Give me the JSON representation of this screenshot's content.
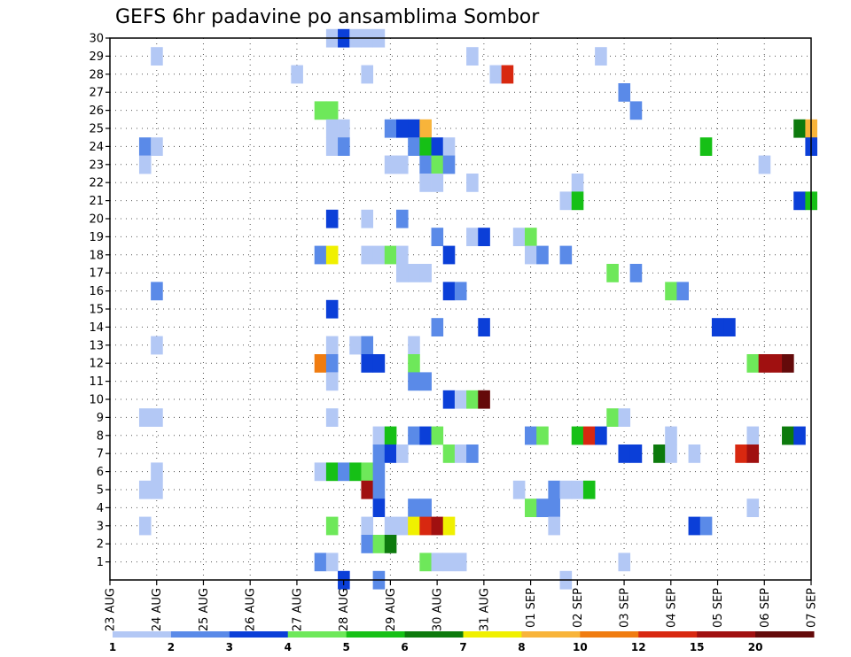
{
  "chart_data": {
    "type": "heatmap",
    "title": "GEFS 6hr padavine po ansamblima Sombor",
    "x_tick_labels": [
      "23 AUG",
      "24 AUG",
      "25 AUG",
      "26 AUG",
      "27 AUG",
      "28 AUG",
      "29 AUG",
      "30 AUG",
      "31 AUG",
      "01 SEP",
      "02 SEP",
      "03 SEP",
      "04 SEP",
      "05 SEP",
      "06 SEP",
      "07 SEP"
    ],
    "y_tick_labels": [
      "1",
      "2",
      "3",
      "4",
      "5",
      "6",
      "7",
      "8",
      "9",
      "10",
      "11",
      "12",
      "13",
      "14",
      "15",
      "16",
      "17",
      "18",
      "19",
      "20",
      "21",
      "22",
      "23",
      "24",
      "25",
      "26",
      "27",
      "28",
      "29",
      "30"
    ],
    "x_range_steps": [
      0,
      60
    ],
    "steps_per_day": 4,
    "ylim": [
      0,
      30
    ],
    "grid": true,
    "colorbar": {
      "labels": [
        "1",
        "2",
        "3",
        "4",
        "5",
        "6",
        "7",
        "8",
        "10",
        "12",
        "15",
        "20"
      ],
      "colors": [
        "#b3c8f5",
        "#5a8ae8",
        "#0b3fd8",
        "#6ee85a",
        "#16c016",
        "#0d7a0d",
        "#f0f000",
        "#f8b43a",
        "#f07c10",
        "#d82810",
        "#a01010",
        "#640a0a"
      ]
    },
    "cells": [
      [
        19,
        30,
        1
      ],
      [
        20,
        30,
        3
      ],
      [
        21,
        30,
        1
      ],
      [
        22,
        30,
        1
      ],
      [
        23,
        30,
        1
      ],
      [
        4,
        29,
        1
      ],
      [
        31,
        29,
        1
      ],
      [
        42,
        29,
        1
      ],
      [
        16,
        28,
        1
      ],
      [
        22,
        28,
        1
      ],
      [
        33,
        28,
        1
      ],
      [
        34,
        28,
        10
      ],
      [
        44,
        27,
        2
      ],
      [
        18,
        26,
        4
      ],
      [
        19,
        26,
        4
      ],
      [
        45,
        26,
        2
      ],
      [
        19,
        25,
        1
      ],
      [
        20,
        25,
        1
      ],
      [
        24,
        25,
        2
      ],
      [
        25,
        25,
        3
      ],
      [
        26,
        25,
        3
      ],
      [
        27,
        25,
        8
      ],
      [
        59,
        25,
        6
      ],
      [
        60,
        25,
        8
      ],
      [
        3,
        24,
        2
      ],
      [
        4,
        24,
        1
      ],
      [
        19,
        24,
        1
      ],
      [
        20,
        24,
        2
      ],
      [
        26,
        24,
        2
      ],
      [
        27,
        24,
        5
      ],
      [
        28,
        24,
        3
      ],
      [
        29,
        24,
        1
      ],
      [
        51,
        24,
        5
      ],
      [
        60,
        24,
        3
      ],
      [
        3,
        23,
        1
      ],
      [
        24,
        23,
        1
      ],
      [
        25,
        23,
        1
      ],
      [
        27,
        23,
        2
      ],
      [
        28,
        23,
        4
      ],
      [
        29,
        23,
        2
      ],
      [
        56,
        23,
        1
      ],
      [
        27,
        22,
        1
      ],
      [
        28,
        22,
        1
      ],
      [
        31,
        22,
        1
      ],
      [
        40,
        22,
        1
      ],
      [
        39,
        21,
        1
      ],
      [
        40,
        21,
        5
      ],
      [
        59,
        21,
        3
      ],
      [
        60,
        21,
        5
      ],
      [
        19,
        20,
        3
      ],
      [
        22,
        20,
        1
      ],
      [
        25,
        20,
        2
      ],
      [
        28,
        19,
        2
      ],
      [
        31,
        19,
        1
      ],
      [
        32,
        19,
        3
      ],
      [
        35,
        19,
        1
      ],
      [
        36,
        19,
        4
      ],
      [
        18,
        18,
        2
      ],
      [
        19,
        18,
        7
      ],
      [
        22,
        18,
        1
      ],
      [
        23,
        18,
        1
      ],
      [
        24,
        18,
        4
      ],
      [
        25,
        18,
        1
      ],
      [
        29,
        18,
        3
      ],
      [
        36,
        18,
        1
      ],
      [
        37,
        18,
        2
      ],
      [
        39,
        18,
        2
      ],
      [
        25,
        17,
        1
      ],
      [
        26,
        17,
        1
      ],
      [
        27,
        17,
        1
      ],
      [
        43,
        17,
        4
      ],
      [
        45,
        17,
        2
      ],
      [
        4,
        16,
        2
      ],
      [
        29,
        16,
        3
      ],
      [
        30,
        16,
        2
      ],
      [
        48,
        16,
        4
      ],
      [
        49,
        16,
        2
      ],
      [
        19,
        15,
        3
      ],
      [
        28,
        14,
        2
      ],
      [
        32,
        14,
        3
      ],
      [
        52,
        14,
        3
      ],
      [
        53,
        14,
        3
      ],
      [
        4,
        13,
        1
      ],
      [
        19,
        13,
        1
      ],
      [
        21,
        13,
        1
      ],
      [
        22,
        13,
        2
      ],
      [
        26,
        13,
        1
      ],
      [
        18,
        12,
        9
      ],
      [
        19,
        12,
        2
      ],
      [
        22,
        12,
        3
      ],
      [
        23,
        12,
        3
      ],
      [
        26,
        12,
        4
      ],
      [
        55,
        12,
        4
      ],
      [
        56,
        12,
        11
      ],
      [
        57,
        12,
        11
      ],
      [
        58,
        12,
        12
      ],
      [
        19,
        11,
        1
      ],
      [
        26,
        11,
        2
      ],
      [
        27,
        11,
        2
      ],
      [
        29,
        10,
        3
      ],
      [
        30,
        10,
        1
      ],
      [
        31,
        10,
        4
      ],
      [
        32,
        10,
        12
      ],
      [
        3,
        9,
        1
      ],
      [
        4,
        9,
        1
      ],
      [
        19,
        9,
        1
      ],
      [
        43,
        9,
        4
      ],
      [
        44,
        9,
        1
      ],
      [
        23,
        8,
        1
      ],
      [
        24,
        8,
        5
      ],
      [
        26,
        8,
        2
      ],
      [
        27,
        8,
        3
      ],
      [
        28,
        8,
        4
      ],
      [
        36,
        8,
        2
      ],
      [
        37,
        8,
        4
      ],
      [
        40,
        8,
        5
      ],
      [
        41,
        8,
        10
      ],
      [
        42,
        8,
        3
      ],
      [
        48,
        8,
        1
      ],
      [
        55,
        8,
        1
      ],
      [
        58,
        8,
        6
      ],
      [
        59,
        8,
        3
      ],
      [
        23,
        7,
        2
      ],
      [
        24,
        7,
        3
      ],
      [
        25,
        7,
        1
      ],
      [
        29,
        7,
        4
      ],
      [
        30,
        7,
        1
      ],
      [
        31,
        7,
        2
      ],
      [
        44,
        7,
        3
      ],
      [
        45,
        7,
        3
      ],
      [
        47,
        7,
        6
      ],
      [
        48,
        7,
        1
      ],
      [
        50,
        7,
        1
      ],
      [
        54,
        7,
        10
      ],
      [
        55,
        7,
        11
      ],
      [
        4,
        6,
        1
      ],
      [
        18,
        6,
        1
      ],
      [
        19,
        6,
        5
      ],
      [
        20,
        6,
        2
      ],
      [
        21,
        6,
        5
      ],
      [
        22,
        6,
        4
      ],
      [
        23,
        6,
        2
      ],
      [
        3,
        5,
        1
      ],
      [
        4,
        5,
        1
      ],
      [
        22,
        5,
        11
      ],
      [
        23,
        5,
        2
      ],
      [
        35,
        5,
        1
      ],
      [
        38,
        5,
        2
      ],
      [
        39,
        5,
        1
      ],
      [
        40,
        5,
        1
      ],
      [
        41,
        5,
        5
      ],
      [
        23,
        4,
        3
      ],
      [
        26,
        4,
        2
      ],
      [
        27,
        4,
        2
      ],
      [
        36,
        4,
        4
      ],
      [
        37,
        4,
        2
      ],
      [
        38,
        4,
        2
      ],
      [
        55,
        4,
        1
      ],
      [
        3,
        3,
        1
      ],
      [
        19,
        3,
        4
      ],
      [
        22,
        3,
        1
      ],
      [
        24,
        3,
        1
      ],
      [
        25,
        3,
        1
      ],
      [
        26,
        3,
        7
      ],
      [
        27,
        3,
        10
      ],
      [
        28,
        3,
        11
      ],
      [
        29,
        3,
        7
      ],
      [
        38,
        3,
        1
      ],
      [
        50,
        3,
        3
      ],
      [
        51,
        3,
        2
      ],
      [
        22,
        2,
        2
      ],
      [
        23,
        2,
        4
      ],
      [
        24,
        2,
        6
      ],
      [
        18,
        1,
        2
      ],
      [
        19,
        1,
        1
      ],
      [
        27,
        1,
        4
      ],
      [
        28,
        1,
        1
      ],
      [
        29,
        1,
        1
      ],
      [
        30,
        1,
        1
      ],
      [
        44,
        1,
        1
      ],
      [
        20,
        0,
        3
      ],
      [
        23,
        0,
        2
      ],
      [
        39,
        0,
        1
      ]
    ]
  }
}
